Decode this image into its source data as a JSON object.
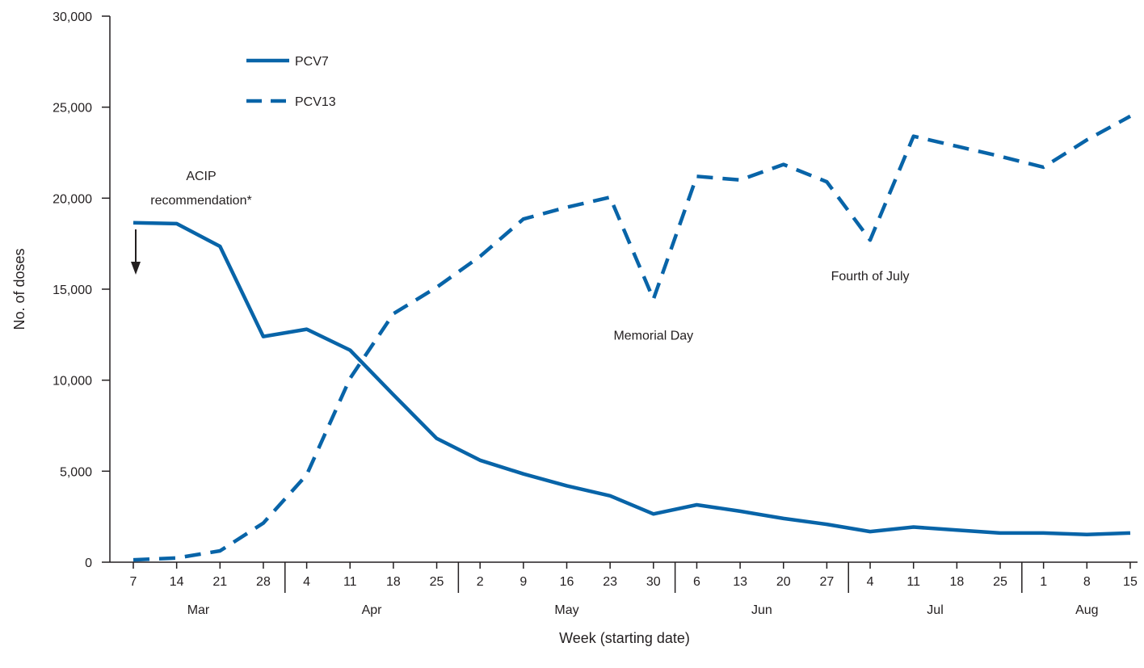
{
  "chart_data": {
    "type": "line",
    "title": "",
    "xlabel": "Week (starting date)",
    "ylabel": "No. of doses",
    "ylim": [
      0,
      30000
    ],
    "yticks": [
      0,
      5000,
      10000,
      15000,
      20000,
      25000,
      30000
    ],
    "ytick_labels": [
      "0",
      "5,000",
      "10,000",
      "15,000",
      "20,000",
      "25,000",
      "30,000"
    ],
    "x_tick_labels": [
      "7",
      "14",
      "21",
      "28",
      "4",
      "11",
      "18",
      "25",
      "2",
      "9",
      "16",
      "23",
      "30",
      "6",
      "13",
      "20",
      "27",
      "4",
      "11",
      "18",
      "25",
      "1",
      "8",
      "15"
    ],
    "months": [
      {
        "label": "Mar",
        "start": 0,
        "end": 3
      },
      {
        "label": "Apr",
        "start": 4,
        "end": 7
      },
      {
        "label": "May",
        "start": 8,
        "end": 12
      },
      {
        "label": "Jun",
        "start": 13,
        "end": 16
      },
      {
        "label": "Jul",
        "start": 17,
        "end": 20
      },
      {
        "label": "Aug",
        "start": 21,
        "end": 23
      }
    ],
    "grid": false,
    "legend_position": "top-left",
    "series": [
      {
        "name": "PCV7",
        "style": "solid",
        "color": "#0864a8",
        "values": [
          18650,
          18600,
          17350,
          12400,
          12800,
          11650,
          9200,
          6800,
          5600,
          4850,
          4200,
          3650,
          2650,
          3150,
          2800,
          2400,
          2080,
          1680,
          1930,
          1760,
          1600,
          1600,
          1520,
          1600
        ]
      },
      {
        "name": "PCV13",
        "style": "dashed",
        "color": "#0864a8",
        "values": [
          130,
          230,
          620,
          2150,
          4800,
          10100,
          13650,
          15100,
          16800,
          18850,
          19500,
          20050,
          14450,
          21200,
          21000,
          21850,
          20900,
          17700,
          23400,
          22850,
          22300,
          21700,
          23200,
          24500
        ]
      }
    ],
    "annotations": [
      {
        "text_lines": [
          "ACIP",
          "recommendation*"
        ],
        "at_index": 0,
        "arrow": true
      },
      {
        "text": "Memorial Day",
        "at_index": 12
      },
      {
        "text": "Fourth of July",
        "at_index": 17
      }
    ]
  }
}
